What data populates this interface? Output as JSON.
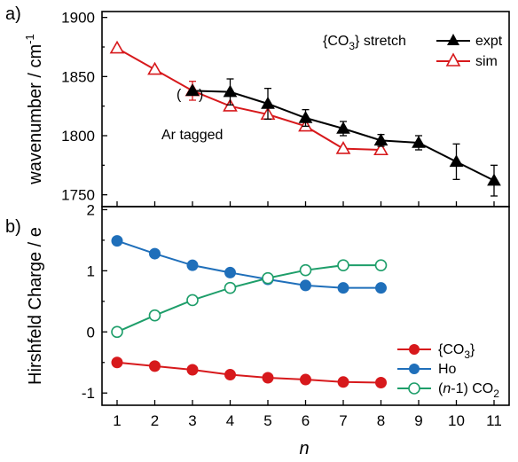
{
  "chart_data": [
    {
      "type": "line",
      "panel_label": "a)",
      "title": "",
      "xlabel": "",
      "ylabel": "wavenumber / cm",
      "ylabel_sup": "-1",
      "ylim": [
        1740,
        1905
      ],
      "yticks": [
        1750,
        1800,
        1850,
        1900
      ],
      "xlim": [
        0.6,
        11.4
      ],
      "legend_title_main": "{CO",
      "legend_title_sub": "3",
      "legend_title_tail": "} stretch",
      "legend_placement": "top-right",
      "annotation": "Ar tagged",
      "annotation_point": {
        "x": 3,
        "y": 1838
      },
      "series": [
        {
          "name": "expt",
          "color": "#000000",
          "marker": "filled-triangle",
          "x": [
            3,
            4,
            5,
            6,
            7,
            8,
            9,
            10,
            11
          ],
          "y": [
            1838,
            1837,
            1827,
            1815,
            1806,
            1796,
            1794,
            1778,
            1762
          ],
          "err": [
            0,
            11,
            13,
            7,
            6,
            5,
            6,
            15,
            13
          ]
        },
        {
          "name": "sim",
          "color": "#d7191c",
          "marker": "open-triangle",
          "x": [
            1,
            2,
            3,
            4,
            5,
            6,
            7,
            8
          ],
          "y": [
            1874,
            1856,
            1838,
            1825,
            1818,
            1808,
            1789,
            1788
          ],
          "err": [
            0,
            0,
            8,
            0,
            0,
            0,
            0,
            0
          ]
        }
      ]
    },
    {
      "type": "line",
      "panel_label": "b)",
      "title": "",
      "xlabel": "n",
      "ylabel": "Hirshfeld Charge / e",
      "ylim": [
        -1.2,
        2.05
      ],
      "yticks": [
        -1,
        0,
        1,
        2
      ],
      "xticks": [
        1,
        2,
        3,
        4,
        5,
        6,
        7,
        8,
        9,
        10,
        11
      ],
      "xlim": [
        0.6,
        11.4
      ],
      "legend_placement": "bottom-right",
      "series": [
        {
          "name": "{CO3}",
          "name_main": "{CO",
          "name_sub": "3",
          "name_tail": "}",
          "color": "#d7191c",
          "marker": "filled-circle",
          "x": [
            1,
            2,
            3,
            4,
            5,
            6,
            7,
            8
          ],
          "y": [
            -0.5,
            -0.56,
            -0.62,
            -0.7,
            -0.75,
            -0.78,
            -0.82,
            -0.83
          ]
        },
        {
          "name": "Ho",
          "color": "#1f6fba",
          "marker": "filled-circle",
          "x": [
            1,
            2,
            3,
            4,
            5,
            6,
            7,
            8
          ],
          "y": [
            1.49,
            1.28,
            1.09,
            0.97,
            0.86,
            0.76,
            0.72,
            0.72
          ]
        },
        {
          "name": "(n-1) CO2",
          "name_a": "(",
          "name_n": "n",
          "name_b": "-1) CO",
          "name_sub": "2",
          "color": "#1e9e6a",
          "marker": "open-circle",
          "x": [
            1,
            2,
            3,
            4,
            5,
            6,
            7,
            8
          ],
          "y": [
            0.0,
            0.27,
            0.52,
            0.72,
            0.88,
            1.01,
            1.09,
            1.09
          ]
        }
      ]
    }
  ]
}
